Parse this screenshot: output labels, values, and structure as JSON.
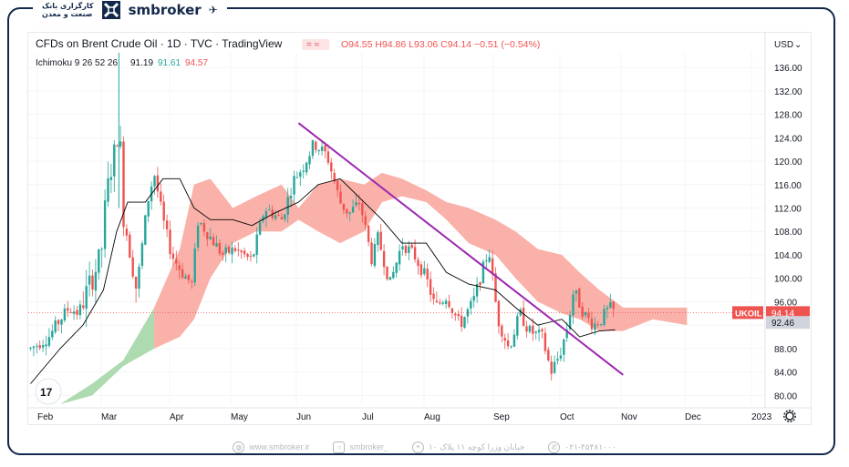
{
  "header": {
    "bank_text_line1": "کارگزاری بانک",
    "bank_text_line2": "صنعت و معدن",
    "brand_name": "smbroker",
    "logo_icon": "smbroker-logo-icon",
    "plane_icon": "paper-plane-icon"
  },
  "footer": {
    "website": "www.smbroker.ir",
    "instagram": "smbroker_",
    "address": "خیابان وزرا کوچه ۱۱ پلاک ۱۰",
    "phone": "۰۲۱-۴۵۴۸۱۰۰۰"
  },
  "chart_data": {
    "type": "candlestick",
    "title": "CFDs on Brent Crude Oil · 1D · TVC · TradingView",
    "ohlc_label": "O94.55 H94.86 L93.06 C94.14 −0.51 (−0.54%)",
    "indicator_label": "Ichimoku 9 26 52 26",
    "indicator_values": [
      "91.19",
      "91.61",
      "94.57"
    ],
    "currency": "USD",
    "currency_symbol": "⌄",
    "tv_logo": "17",
    "settings_icon": "gear-icon",
    "price_ticks": [
      "136.00",
      "132.00",
      "128.00",
      "124.00",
      "120.00",
      "116.00",
      "112.00",
      "108.00",
      "104.00",
      "100.00",
      "96.00",
      "92.00",
      "88.00",
      "84.00",
      "80.00"
    ],
    "ylim": [
      78.5,
      138.5
    ],
    "time_ticks": [
      "Feb",
      "Mar",
      "Apr",
      "May",
      "Jun",
      "Jul",
      "Aug",
      "Sep",
      "Oct",
      "Nov",
      "Dec",
      "2023"
    ],
    "symbol_label": "UKOIL",
    "last_price": 94.14,
    "last_price_label": "94.14",
    "second_price": 92.46,
    "second_price_label": "92.46",
    "colors": {
      "up": "#26a69a",
      "down": "#ef5350",
      "tenkan": "#000000",
      "cloud_bull": "#a5d6a7",
      "cloud_bear": "#f8a8a0",
      "trendline": "#9c27b0",
      "price_line": "#ef5350"
    },
    "trendline": {
      "start": [
        "Jun 1",
        126.5
      ],
      "end": [
        "Nov 1",
        83.5
      ]
    },
    "price_series": [
      [
        "Jan 28",
        88
      ],
      [
        "Feb 1",
        89
      ],
      [
        "Feb 5",
        90
      ],
      [
        "Feb 10",
        93
      ],
      [
        "Feb 14",
        95
      ],
      [
        "Feb 18",
        94
      ],
      [
        "Feb 23",
        99
      ],
      [
        "Feb 28",
        104
      ],
      [
        "Mar 2",
        113
      ],
      [
        "Mar 4",
        118
      ],
      [
        "Mar 7",
        123
      ],
      [
        "Mar 8",
        128
      ],
      [
        "Mar 10",
        111
      ],
      [
        "Mar 14",
        103
      ],
      [
        "Mar 16",
        98
      ],
      [
        "Mar 21",
        113
      ],
      [
        "Mar 24",
        118
      ],
      [
        "Mar 28",
        110
      ],
      [
        "Apr 1",
        104
      ],
      [
        "Apr 6",
        101
      ],
      [
        "Apr 11",
        99
      ],
      [
        "Apr 14",
        110
      ],
      [
        "Apr 20",
        107
      ],
      [
        "Apr 26",
        104
      ],
      [
        "May 2",
        105
      ],
      [
        "May 10",
        103
      ],
      [
        "May 16",
        112
      ],
      [
        "May 24",
        110
      ],
      [
        "May 30",
        117
      ],
      [
        "Jun 3",
        119
      ],
      [
        "Jun 8",
        123
      ],
      [
        "Jun 14",
        121
      ],
      [
        "Jun 20",
        113
      ],
      [
        "Jun 24",
        111
      ],
      [
        "Jun 29",
        113
      ],
      [
        "Jul 5",
        103
      ],
      [
        "Jul 8",
        107
      ],
      [
        "Jul 14",
        99
      ],
      [
        "Jul 20",
        106
      ],
      [
        "Jul 26",
        104
      ],
      [
        "Aug 1",
        100
      ],
      [
        "Aug 5",
        95
      ],
      [
        "Aug 10",
        97
      ],
      [
        "Aug 16",
        92
      ],
      [
        "Aug 22",
        96
      ],
      [
        "Aug 29",
        105
      ],
      [
        "Sep 2",
        93
      ],
      [
        "Sep 7",
        88
      ],
      [
        "Sep 12",
        94
      ],
      [
        "Sep 16",
        91
      ],
      [
        "Sep 22",
        90
      ],
      [
        "Sep 26",
        84
      ],
      [
        "Sep 30",
        87
      ],
      [
        "Oct 4",
        92
      ],
      [
        "Oct 7",
        98
      ],
      [
        "Oct 12",
        94
      ],
      [
        "Oct 17",
        92
      ],
      [
        "Oct 21",
        93
      ],
      [
        "Oct 25",
        95
      ],
      [
        "Oct 28",
        94.14
      ]
    ],
    "tenkan_series": [
      [
        "Jan 28",
        82
      ],
      [
        "Feb 10",
        88
      ],
      [
        "Feb 20",
        92
      ],
      [
        "Mar 1",
        98
      ],
      [
        "Mar 7",
        108
      ],
      [
        "Mar 12",
        113
      ],
      [
        "Mar 20",
        113
      ],
      [
        "Mar 28",
        117
      ],
      [
        "Apr 5",
        117
      ],
      [
        "Apr 12",
        112
      ],
      [
        "Apr 20",
        110
      ],
      [
        "May 1",
        110
      ],
      [
        "May 10",
        109
      ],
      [
        "May 20",
        111
      ],
      [
        "Jun 1",
        113
      ],
      [
        "Jun 10",
        116
      ],
      [
        "Jun 20",
        117
      ],
      [
        "Jul 1",
        113
      ],
      [
        "Jul 10",
        110
      ],
      [
        "Jul 20",
        106
      ],
      [
        "Aug 1",
        106
      ],
      [
        "Aug 10",
        101
      ],
      [
        "Aug 20",
        99
      ],
      [
        "Sep 1",
        98
      ],
      [
        "Sep 10",
        95
      ],
      [
        "Sep 20",
        92
      ],
      [
        "Oct 1",
        93
      ],
      [
        "Oct 10",
        90
      ],
      [
        "Oct 20",
        91
      ],
      [
        "Oct 28",
        91.19
      ]
    ],
    "cloud_upper": [
      [
        "Feb 10",
        78.5
      ],
      [
        "Feb 24",
        80
      ],
      [
        "Mar 10",
        85
      ],
      [
        "Mar 24",
        95
      ],
      [
        "Apr 5",
        105
      ],
      [
        "Apr 12",
        116
      ],
      [
        "Apr 20",
        117
      ],
      [
        "May 1",
        112
      ],
      [
        "May 12",
        114
      ],
      [
        "May 24",
        116
      ],
      [
        "Jun 1",
        112
      ],
      [
        "Jun 10",
        116
      ],
      [
        "Jun 20",
        117
      ],
      [
        "Jul 1",
        116
      ],
      [
        "Jul 10",
        118
      ],
      [
        "Jul 20",
        117
      ],
      [
        "Aug 1",
        115
      ],
      [
        "Aug 10",
        113
      ],
      [
        "Aug 20",
        112
      ],
      [
        "Sep 1",
        110
      ],
      [
        "Sep 10",
        108
      ],
      [
        "Sep 20",
        105
      ],
      [
        "Oct 1",
        104
      ],
      [
        "Oct 10",
        101
      ],
      [
        "Oct 20",
        98
      ],
      [
        "Nov 1",
        95
      ],
      [
        "Nov 15",
        95
      ],
      [
        "Dec 1",
        95
      ]
    ],
    "cloud_lower": [
      [
        "Feb 10",
        78.5
      ],
      [
        "Feb 24",
        82
      ],
      [
        "Mar 10",
        86
      ],
      [
        "Mar 24",
        88
      ],
      [
        "Apr 5",
        90
      ],
      [
        "Apr 12",
        93
      ],
      [
        "Apr 20",
        100
      ],
      [
        "May 1",
        106
      ],
      [
        "May 12",
        108
      ],
      [
        "May 24",
        108
      ],
      [
        "Jun 1",
        110
      ],
      [
        "Jun 10",
        108
      ],
      [
        "Jun 20",
        106
      ],
      [
        "Jul 1",
        108
      ],
      [
        "Jul 10",
        113
      ],
      [
        "Jul 20",
        114
      ],
      [
        "Aug 1",
        113
      ],
      [
        "Aug 10",
        110
      ],
      [
        "Aug 20",
        106
      ],
      [
        "Sep 1",
        104
      ],
      [
        "Sep 10",
        100
      ],
      [
        "Sep 20",
        96
      ],
      [
        "Oct 1",
        94
      ],
      [
        "Oct 10",
        93
      ],
      [
        "Oct 20",
        91
      ],
      [
        "Nov 1",
        91
      ],
      [
        "Nov 15",
        93
      ],
      [
        "Dec 1",
        92
      ]
    ]
  }
}
